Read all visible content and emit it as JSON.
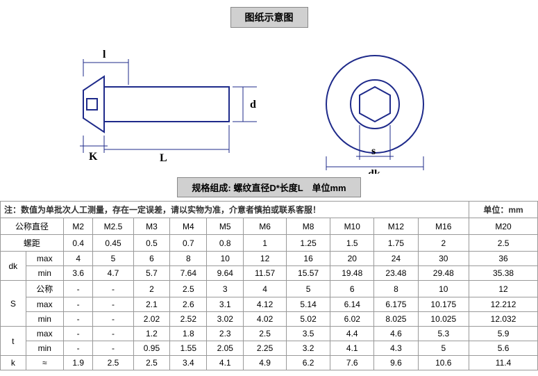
{
  "title": "图纸示意图",
  "subtitle": "规格组成: 螺纹直径D*长度L　单位mm",
  "note": "注：数值为单批次人工测量，存在一定误差，请以实物为准，介意者慎拍或联系客服！",
  "unit_label": "单位：mm",
  "diagram": {
    "labels": {
      "l": "l",
      "d": "d",
      "k": "K",
      "L": "L",
      "s": "s",
      "dk": "dk"
    },
    "colors": {
      "line": "#1e2a8a",
      "fill": "#ffffff"
    }
  },
  "table": {
    "sizes": [
      "M2",
      "M2.5",
      "M3",
      "M4",
      "M5",
      "M6",
      "M8",
      "M10",
      "M12",
      "M16",
      "M20"
    ],
    "rows": [
      {
        "h1": "公称直径",
        "h2": "",
        "v": [
          "M2",
          "M2.5",
          "M3",
          "M4",
          "M5",
          "M6",
          "M8",
          "M10",
          "M12",
          "M16",
          "M20"
        ]
      },
      {
        "h1": "螺距",
        "h2": "",
        "v": [
          "0.4",
          "0.45",
          "0.5",
          "0.7",
          "0.8",
          "1",
          "1.25",
          "1.5",
          "1.75",
          "2",
          "2.5"
        ]
      },
      {
        "h1": "dk",
        "h2": "max",
        "v": [
          "4",
          "5",
          "6",
          "8",
          "10",
          "12",
          "16",
          "20",
          "24",
          "30",
          "36"
        ]
      },
      {
        "h1": "",
        "h2": "min",
        "v": [
          "3.6",
          "4.7",
          "5.7",
          "7.64",
          "9.64",
          "11.57",
          "15.57",
          "19.48",
          "23.48",
          "29.48",
          "35.38"
        ]
      },
      {
        "h1": "S",
        "h2": "公称",
        "v": [
          "-",
          "-",
          "2",
          "2.5",
          "3",
          "4",
          "5",
          "6",
          "8",
          "10",
          "12"
        ]
      },
      {
        "h1": "",
        "h2": "max",
        "v": [
          "-",
          "-",
          "2.1",
          "2.6",
          "3.1",
          "4.12",
          "5.14",
          "6.14",
          "6.175",
          "10.175",
          "12.212"
        ]
      },
      {
        "h1": "",
        "h2": "min",
        "v": [
          "-",
          "-",
          "2.02",
          "2.52",
          "3.02",
          "4.02",
          "5.02",
          "6.02",
          "8.025",
          "10.025",
          "12.032"
        ]
      },
      {
        "h1": "t",
        "h2": "max",
        "v": [
          "-",
          "-",
          "1.2",
          "1.8",
          "2.3",
          "2.5",
          "3.5",
          "4.4",
          "4.6",
          "5.3",
          "5.9"
        ]
      },
      {
        "h1": "",
        "h2": "min",
        "v": [
          "-",
          "-",
          "0.95",
          "1.55",
          "2.05",
          "2.25",
          "3.2",
          "4.1",
          "4.3",
          "5",
          "5.6"
        ]
      },
      {
        "h1": "k",
        "h2": "≈",
        "v": [
          "1.9",
          "2.5",
          "2.5",
          "3.4",
          "4.1",
          "4.9",
          "6.2",
          "7.6",
          "9.6",
          "10.6",
          "11.4"
        ]
      }
    ]
  }
}
